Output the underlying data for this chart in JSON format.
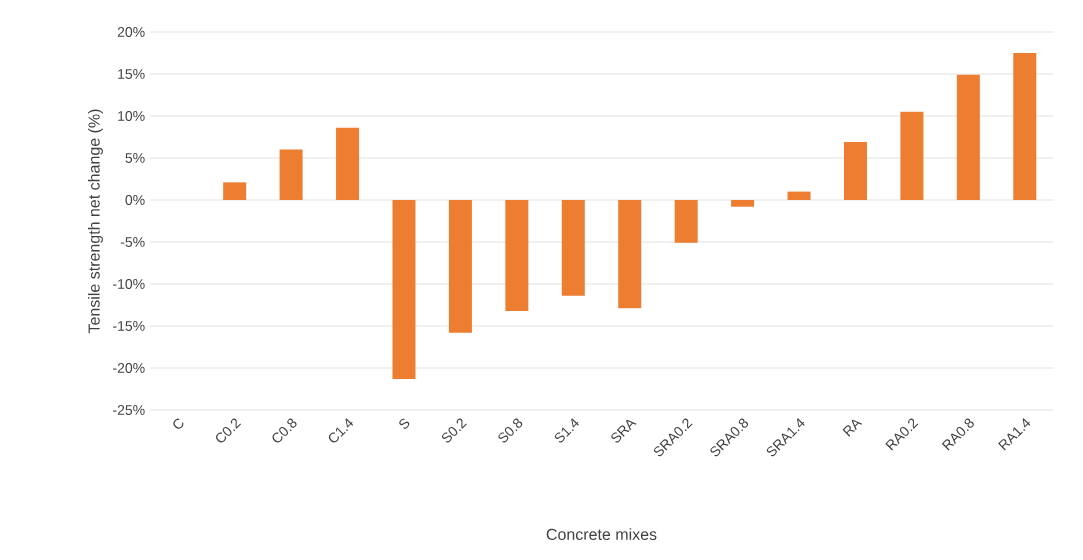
{
  "chart_data": {
    "type": "bar",
    "xlabel": "Concrete mixes",
    "ylabel": "Tensile strength net change (%)",
    "categories": [
      "C",
      "C0.2",
      "C0.8",
      "C1.4",
      "S",
      "S0.2",
      "S0.8",
      "S1.4",
      "SRA",
      "SRA0.2",
      "SRA0.8",
      "SRA1.4",
      "RA",
      "RA0.2",
      "RA0.8",
      "RA1.4"
    ],
    "values": [
      0,
      2.1,
      6.0,
      8.6,
      -21.3,
      -15.8,
      -13.2,
      -11.4,
      -12.9,
      -5.1,
      -0.8,
      1.0,
      6.9,
      10.5,
      14.9,
      17.5
    ],
    "color": "#ed7d31",
    "ylim": [
      -25,
      20
    ],
    "yticks": [
      {
        "value": -25,
        "label": "-25%"
      },
      {
        "value": -20,
        "label": "-20%"
      },
      {
        "value": -15,
        "label": "-15%"
      },
      {
        "value": -10,
        "label": "-10%"
      },
      {
        "value": -5,
        "label": "-5%"
      },
      {
        "value": 0,
        "label": "0%"
      },
      {
        "value": 5,
        "label": "5%"
      },
      {
        "value": 10,
        "label": "10%"
      },
      {
        "value": 15,
        "label": "15%"
      },
      {
        "value": 20,
        "label": "20%"
      }
    ],
    "grid": "y"
  }
}
